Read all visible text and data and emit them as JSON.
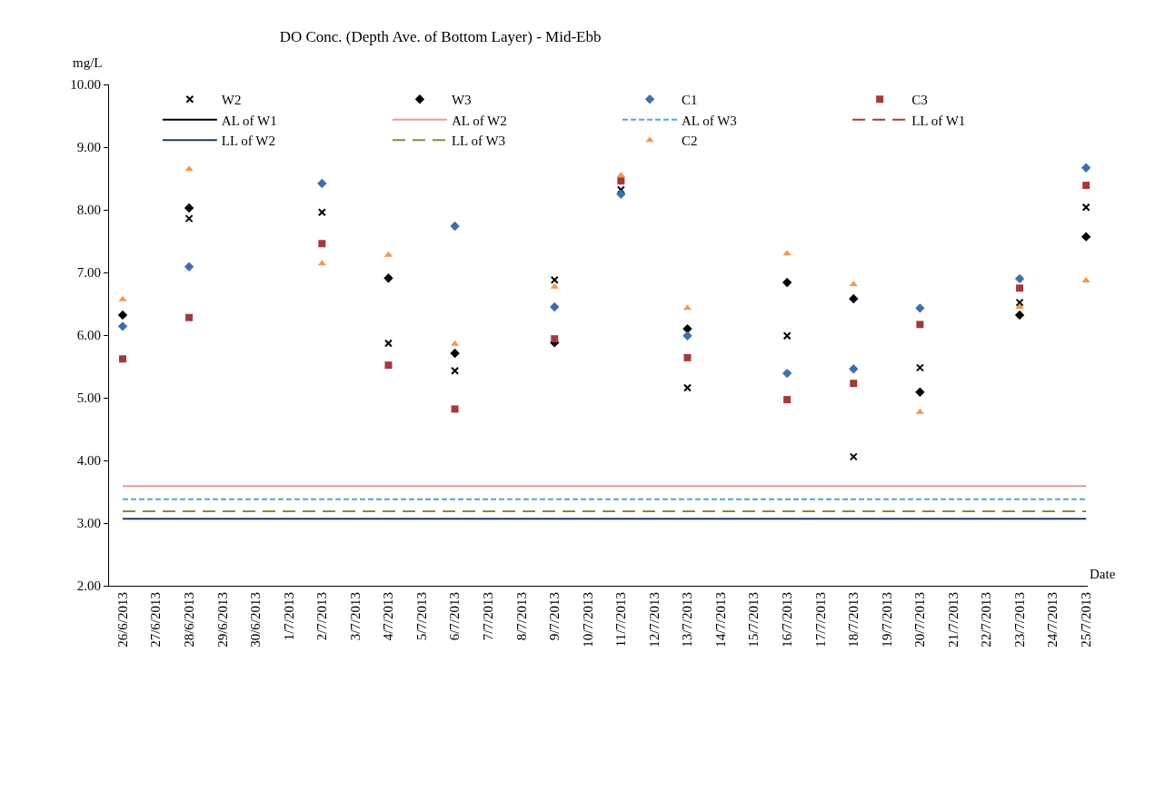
{
  "chart_data": {
    "type": "scatter",
    "title": "DO Conc. (Depth Ave. of Bottom Layer) - Mid-Ebb",
    "xlabel": "Date",
    "ylabel": "mg/L",
    "categories": [
      "26/6/2013",
      "27/6/2013",
      "28/6/2013",
      "29/6/2013",
      "30/6/2013",
      "1/7/2013",
      "2/7/2013",
      "3/7/2013",
      "4/7/2013",
      "5/7/2013",
      "6/7/2013",
      "7/7/2013",
      "8/7/2013",
      "9/7/2013",
      "10/7/2013",
      "11/7/2013",
      "12/7/2013",
      "13/7/2013",
      "14/7/2013",
      "15/7/2013",
      "16/7/2013",
      "17/7/2013",
      "18/7/2013",
      "19/7/2013",
      "20/7/2013",
      "21/7/2013",
      "22/7/2013",
      "23/7/2013",
      "24/7/2013",
      "25/7/2013"
    ],
    "series": [
      {
        "name": "W2",
        "marker": "cross",
        "color": "#000000",
        "values": [
          null,
          null,
          7.86,
          null,
          null,
          null,
          7.96,
          null,
          5.87,
          null,
          5.43,
          null,
          null,
          6.88,
          null,
          8.32,
          null,
          5.16,
          null,
          null,
          5.99,
          null,
          4.06,
          null,
          5.48,
          null,
          null,
          6.52,
          null,
          8.04
        ]
      },
      {
        "name": "W3",
        "marker": "diamond",
        "color": "#000000",
        "values": [
          6.32,
          null,
          8.03,
          null,
          null,
          null,
          null,
          null,
          6.91,
          null,
          5.71,
          null,
          null,
          5.88,
          null,
          null,
          null,
          6.1,
          null,
          null,
          6.84,
          null,
          6.58,
          null,
          5.09,
          null,
          null,
          6.32,
          null,
          7.57
        ]
      },
      {
        "name": "C1",
        "marker": "diamond",
        "color": "#3f6fab",
        "values": [
          6.14,
          null,
          7.09,
          null,
          null,
          null,
          8.42,
          null,
          null,
          null,
          7.74,
          null,
          null,
          6.45,
          null,
          8.25,
          null,
          5.99,
          null,
          null,
          5.39,
          null,
          5.46,
          null,
          6.43,
          null,
          null,
          6.9,
          null,
          8.67
        ]
      },
      {
        "name": "C3",
        "marker": "square",
        "color": "#a33a3a",
        "values": [
          5.62,
          null,
          6.28,
          null,
          null,
          null,
          7.46,
          null,
          5.52,
          null,
          4.82,
          null,
          null,
          5.94,
          null,
          8.46,
          null,
          5.64,
          null,
          null,
          4.97,
          null,
          5.23,
          null,
          6.17,
          null,
          null,
          6.75,
          null,
          8.39
        ]
      },
      {
        "name": "AL of W1",
        "type": "line",
        "line_style": "solid",
        "color": "#000000",
        "values": [
          null,
          null,
          null,
          null,
          null,
          null,
          null,
          null,
          null,
          null,
          null,
          null,
          null,
          null,
          null,
          null,
          null,
          null,
          null,
          null,
          null,
          null,
          null,
          null,
          null,
          null,
          null,
          null,
          null,
          null
        ]
      },
      {
        "name": "AL of W2",
        "type": "line",
        "line_style": "solid",
        "color": "#e39b9b",
        "values": [
          3.59,
          3.59,
          3.59,
          3.59,
          3.59,
          3.59,
          3.59,
          3.59,
          3.59,
          3.59,
          3.59,
          3.59,
          3.59,
          3.59,
          3.59,
          3.59,
          3.59,
          3.59,
          3.59,
          3.59,
          3.59,
          3.59,
          3.59,
          3.59,
          3.59,
          3.59,
          3.59,
          3.59,
          3.59,
          3.59
        ]
      },
      {
        "name": "AL of W3",
        "type": "line",
        "line_style": "dotted",
        "color": "#4bacc6",
        "values": [
          3.38,
          3.38,
          3.38,
          3.38,
          3.38,
          3.38,
          3.38,
          3.38,
          3.38,
          3.38,
          3.38,
          3.38,
          3.38,
          3.38,
          3.38,
          3.38,
          3.38,
          3.38,
          3.38,
          3.38,
          3.38,
          3.38,
          3.38,
          3.38,
          3.38,
          3.38,
          3.38,
          3.38,
          3.38,
          3.38
        ]
      },
      {
        "name": "LL of W1",
        "type": "line",
        "line_style": "dashed",
        "color": "#a33a3a",
        "values": [
          null,
          null,
          null,
          null,
          null,
          null,
          null,
          null,
          null,
          null,
          null,
          null,
          null,
          null,
          null,
          null,
          null,
          null,
          null,
          null,
          null,
          null,
          null,
          null,
          null,
          null,
          null,
          null,
          null,
          null
        ]
      },
      {
        "name": "LL of W2",
        "type": "line",
        "line_style": "solid",
        "color": "#1f3864",
        "values": [
          3.07,
          3.07,
          3.07,
          3.07,
          3.07,
          3.07,
          3.07,
          3.07,
          3.07,
          3.07,
          3.07,
          3.07,
          3.07,
          3.07,
          3.07,
          3.07,
          3.07,
          3.07,
          3.07,
          3.07,
          3.07,
          3.07,
          3.07,
          3.07,
          3.07,
          3.07,
          3.07,
          3.07,
          3.07,
          3.07
        ]
      },
      {
        "name": "LL of W3",
        "type": "line",
        "line_style": "dashed",
        "color": "#77933c",
        "values": [
          3.19,
          3.19,
          3.19,
          3.19,
          3.19,
          3.19,
          3.19,
          3.19,
          3.19,
          3.19,
          3.19,
          3.19,
          3.19,
          3.19,
          3.19,
          3.19,
          3.19,
          3.19,
          3.19,
          3.19,
          3.19,
          3.19,
          3.19,
          3.19,
          3.19,
          3.19,
          3.19,
          3.19,
          3.19,
          3.19
        ]
      },
      {
        "name": "C2",
        "marker": "triangle",
        "color": "#f79646",
        "values": [
          6.57,
          null,
          8.65,
          null,
          null,
          null,
          7.14,
          null,
          7.28,
          null,
          5.86,
          null,
          null,
          6.77,
          null,
          8.55,
          null,
          6.43,
          null,
          null,
          7.3,
          null,
          6.81,
          null,
          4.77,
          null,
          null,
          6.45,
          null,
          6.87
        ]
      }
    ],
    "ylim": [
      2,
      10
    ],
    "yticks": [
      {
        "value": 2,
        "label": "2.00"
      },
      {
        "value": 3,
        "label": "3.00"
      },
      {
        "value": 4,
        "label": "4.00"
      },
      {
        "value": 5,
        "label": "5.00"
      },
      {
        "value": 6,
        "label": "6.00"
      },
      {
        "value": 7,
        "label": "7.00"
      },
      {
        "value": 8,
        "label": "8.00"
      },
      {
        "value": 9,
        "label": "9.00"
      },
      {
        "value": 10,
        "label": "10.00"
      }
    ],
    "legend": "top"
  }
}
